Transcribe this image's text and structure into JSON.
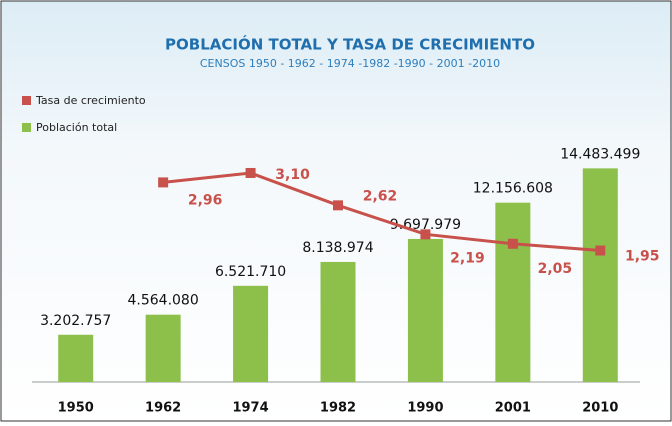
{
  "chart_data": {
    "type": "bar",
    "title": "POBLACIÓN TOTAL Y TASA DE CRECIMIENTO",
    "subtitle": "CENSOS 1950 - 1962 - 1974 -1982 -1990 - 2001 -2010",
    "categories": [
      "1950",
      "1962",
      "1974",
      "1982",
      "1990",
      "2001",
      "2010"
    ],
    "ylim": [
      0,
      16000000
    ],
    "y2lim": [
      0,
      3.5
    ],
    "series": [
      {
        "name": "Tasa de crecimiento",
        "type": "line",
        "axis": "y2",
        "color": "#c8514b",
        "values": [
          null,
          2.96,
          3.1,
          2.62,
          2.19,
          2.05,
          1.95
        ],
        "value_labels": [
          null,
          "2,96",
          "3,10",
          "2,62",
          "2,19",
          "2,05",
          "1,95"
        ]
      },
      {
        "name": "Población total",
        "type": "bar",
        "color": "#8dc04a",
        "values": [
          3202757,
          4564080,
          6521710,
          8138974,
          9697979,
          12156608,
          14483499
        ],
        "value_labels": [
          "3.202.757",
          "4.564.080",
          "6.521.710",
          "8.138.974",
          "9.697.979",
          "12.156.608",
          "14.483.499"
        ]
      }
    ]
  }
}
